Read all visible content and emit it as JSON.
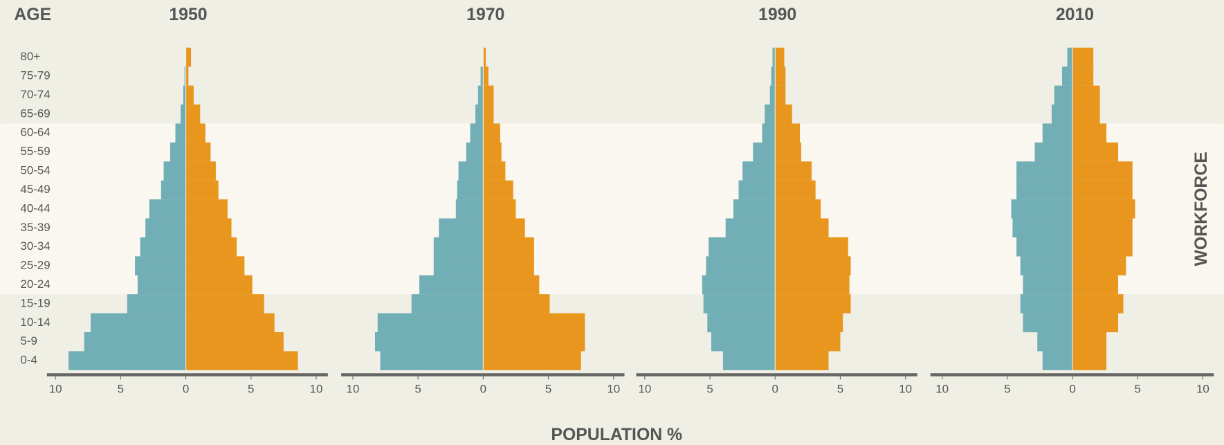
{
  "chart_data": {
    "type": "pyramid",
    "y_label": "AGE",
    "x_label": "POPULATION %",
    "categories": [
      "0-4",
      "5-9",
      "10-14",
      "15-19",
      "20-24",
      "25-29",
      "30-34",
      "35-39",
      "40-44",
      "45-49",
      "50-54",
      "55-59",
      "60-64",
      "65-69",
      "70-74",
      "75-79",
      "80+"
    ],
    "band": {
      "label": "WORKFORCE",
      "from": "20-24",
      "to": "60-64"
    },
    "xlim": [
      -10,
      10
    ],
    "xticks": [
      {
        "value": -10,
        "label": "10"
      },
      {
        "value": -5,
        "label": "5"
      },
      0,
      5,
      10
    ],
    "panels": [
      {
        "title": "1950",
        "series": [
          {
            "color": "#72aeb6",
            "side": "left",
            "values": [
              9.0,
              7.8,
              7.3,
              4.5,
              3.7,
              3.9,
              3.5,
              3.1,
              2.8,
              1.9,
              1.7,
              1.2,
              0.8,
              0.4,
              0.2,
              0.1,
              0
            ]
          },
          {
            "color": "#e9961e",
            "side": "right",
            "values": [
              8.6,
              7.5,
              6.8,
              6.0,
              5.1,
              4.5,
              3.9,
              3.5,
              3.2,
              2.5,
              2.3,
              1.9,
              1.5,
              1.1,
              0.6,
              0.2,
              0.4
            ]
          }
        ]
      },
      {
        "title": "1970",
        "series": [
          {
            "color": "#72aeb6",
            "side": "left",
            "values": [
              7.9,
              8.3,
              8.1,
              5.5,
              4.9,
              3.8,
              3.8,
              3.4,
              2.1,
              2.0,
              1.9,
              1.3,
              1.0,
              0.6,
              0.4,
              0.2,
              0
            ]
          },
          {
            "color": "#e9961e",
            "side": "right",
            "values": [
              7.5,
              7.8,
              7.8,
              5.1,
              4.3,
              3.9,
              3.9,
              3.2,
              2.5,
              2.3,
              1.7,
              1.4,
              1.3,
              0.8,
              0.8,
              0.4,
              0.2
            ]
          }
        ]
      },
      {
        "title": "1990",
        "series": [
          {
            "color": "#72aeb6",
            "side": "left",
            "values": [
              4.0,
              4.9,
              5.2,
              5.5,
              5.6,
              5.3,
              5.1,
              3.8,
              3.2,
              2.8,
              2.5,
              1.7,
              1.0,
              0.8,
              0.4,
              0.3,
              0.2
            ]
          },
          {
            "color": "#e9961e",
            "side": "right",
            "values": [
              4.1,
              5.0,
              5.2,
              5.8,
              5.7,
              5.8,
              5.6,
              4.1,
              3.5,
              3.1,
              2.8,
              2.0,
              1.9,
              1.3,
              0.8,
              0.8,
              0.7
            ]
          }
        ]
      },
      {
        "title": "2010",
        "series": [
          {
            "color": "#72aeb6",
            "side": "left",
            "values": [
              2.3,
              2.7,
              3.8,
              4.0,
              3.8,
              4.0,
              4.3,
              4.6,
              4.7,
              4.3,
              4.3,
              2.9,
              2.3,
              1.6,
              1.4,
              0.8,
              0.4
            ]
          },
          {
            "color": "#e9961e",
            "side": "right",
            "values": [
              2.6,
              2.6,
              3.5,
              3.9,
              3.5,
              4.1,
              4.6,
              4.6,
              4.8,
              4.6,
              4.6,
              3.5,
              2.6,
              2.1,
              2.1,
              1.6,
              1.6
            ]
          }
        ]
      }
    ]
  }
}
